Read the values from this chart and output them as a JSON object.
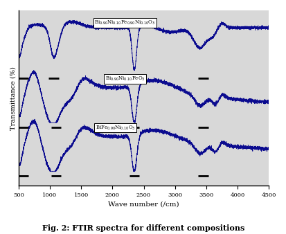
{
  "title": "Fig. 2: FTIR spectra for different compositions",
  "xlabel": "Wave number (/cm)",
  "ylabel": "Transmittance (%)",
  "x_min": 500,
  "x_max": 4500,
  "x_ticks": [
    500,
    1000,
    1500,
    2000,
    2500,
    3000,
    3500,
    4000,
    4500
  ],
  "label_top": "Bi$_{0.90}$Ni$_{0.10}$Fe$_{0.90}$Ni$_{0.10}$O$_3$",
  "label_mid": "Bi$_{0.90}$Ni$_{0.10}$FeO$_3$",
  "label_bot": "BiFe$_{0.90}$Ni$_{0.10}$O$_3$",
  "line_color": "#00008B",
  "bg_color": "#ffffff",
  "plot_bg": "#d8d8d8"
}
